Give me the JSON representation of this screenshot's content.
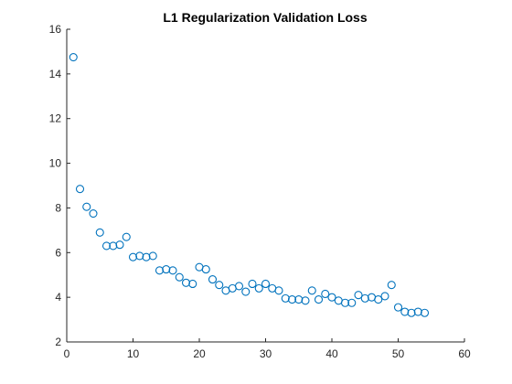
{
  "chart_data": {
    "type": "scatter",
    "title": "L1 Regularization Validation Loss",
    "xlabel": "",
    "ylabel": "",
    "xlim": [
      0,
      60
    ],
    "ylim": [
      2,
      16
    ],
    "xticks": [
      0,
      10,
      20,
      30,
      40,
      50,
      60
    ],
    "yticks": [
      2,
      4,
      6,
      8,
      10,
      12,
      14,
      16
    ],
    "grid": false,
    "marker": "open-circle",
    "color": "#0072BD",
    "series": [
      {
        "x": [
          1,
          2,
          3,
          4,
          5,
          6,
          7,
          8,
          9,
          10,
          11,
          12,
          13,
          14,
          15,
          16,
          17,
          18,
          19,
          20,
          21,
          22,
          23,
          24,
          25,
          26,
          27,
          28,
          29,
          30,
          31,
          32,
          33,
          34,
          35,
          36,
          37,
          38,
          39,
          40,
          41,
          42,
          43,
          44,
          45,
          46,
          47,
          48,
          49,
          50,
          51,
          52,
          53,
          54
        ],
        "y": [
          14.75,
          8.85,
          8.05,
          7.75,
          6.9,
          6.3,
          6.3,
          6.35,
          6.7,
          5.8,
          5.85,
          5.8,
          5.85,
          5.2,
          5.25,
          5.2,
          4.9,
          4.65,
          4.6,
          5.35,
          5.25,
          4.8,
          4.55,
          4.3,
          4.4,
          4.5,
          4.25,
          4.6,
          4.4,
          4.6,
          4.4,
          4.3,
          3.95,
          3.9,
          3.9,
          3.85,
          4.3,
          3.9,
          4.15,
          4.0,
          3.85,
          3.75,
          3.75,
          4.1,
          3.95,
          4.0,
          3.9,
          4.05,
          4.55,
          3.55,
          3.35,
          3.3,
          3.35,
          3.3
        ]
      }
    ]
  }
}
